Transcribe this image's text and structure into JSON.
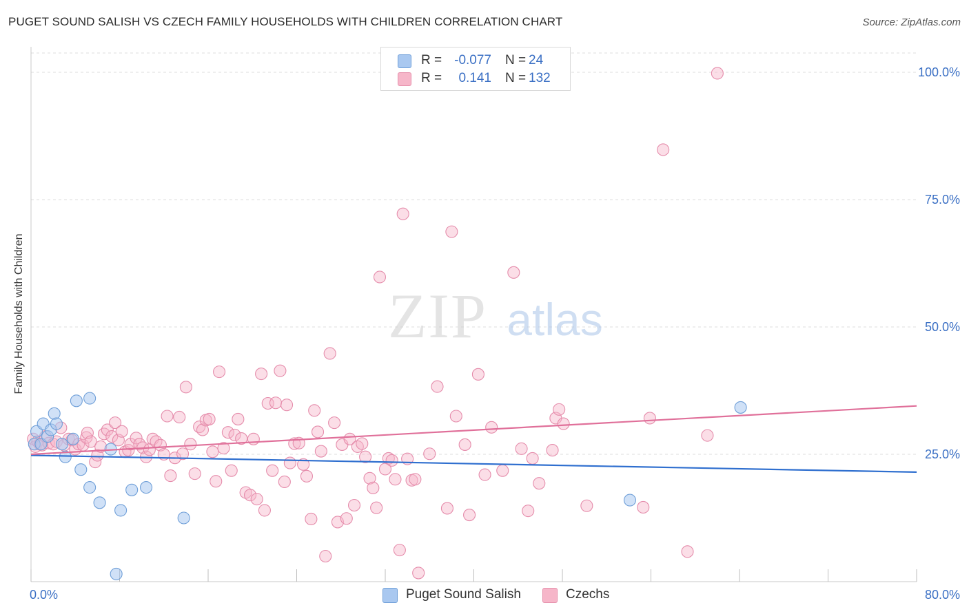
{
  "title": "PUGET SOUND SALISH VS CZECH FAMILY HOUSEHOLDS WITH CHILDREN CORRELATION CHART",
  "source": "Source: ZipAtlas.com",
  "watermark": {
    "zip": "ZIP",
    "atlas": "atlas"
  },
  "legend_top": {
    "rows": [
      {
        "r_label": "R =",
        "r_value": "-0.077",
        "n_label": "N =",
        "n_value": "24",
        "color": "#a9c8f0"
      },
      {
        "r_label": "R =",
        "r_value": "0.141",
        "n_label": "N =",
        "n_value": "132",
        "color": "#f6b6c9"
      }
    ]
  },
  "legend_bottom": {
    "items": [
      {
        "label": "Puget Sound Salish",
        "color": "#a9c8f0"
      },
      {
        "label": "Czechs",
        "color": "#f6b6c9"
      }
    ]
  },
  "chart_data": {
    "type": "scatter",
    "title": "PUGET SOUND SALISH VS CZECH FAMILY HOUSEHOLDS WITH CHILDREN CORRELATION CHART",
    "xlabel": "",
    "ylabel": "Family Households with Children",
    "xlim": [
      0,
      80
    ],
    "ylim": [
      0,
      105
    ],
    "x_tick_labels": [
      "0.0%",
      "80.0%"
    ],
    "y_ticks": [
      25,
      50,
      75,
      100
    ],
    "y_tick_labels": [
      "25.0%",
      "50.0%",
      "75.0%",
      "100.0%"
    ],
    "grid": true,
    "legend_position": "top-center",
    "colors": {
      "salish_fill": "#a9c8f0",
      "salish_line": "#2f6fcf",
      "czech_fill": "#f6b6c9",
      "czech_line": "#e0709a",
      "tick_label": "#3a6fc4"
    },
    "series": [
      {
        "name": "Puget Sound Salish",
        "trend": [
          [
            0,
            24.8
          ],
          [
            80,
            21.5
          ]
        ],
        "points": [
          [
            0.3,
            27.0
          ],
          [
            0.5,
            29.5
          ],
          [
            0.9,
            27.0
          ],
          [
            1.1,
            31.0
          ],
          [
            1.5,
            28.5
          ],
          [
            1.8,
            29.8
          ],
          [
            2.1,
            33.0
          ],
          [
            2.3,
            31.0
          ],
          [
            2.8,
            27.0
          ],
          [
            3.1,
            24.5
          ],
          [
            3.8,
            28.0
          ],
          [
            4.1,
            35.5
          ],
          [
            4.5,
            22.0
          ],
          [
            5.3,
            36.0
          ],
          [
            5.3,
            18.5
          ],
          [
            6.2,
            15.5
          ],
          [
            7.2,
            26.0
          ],
          [
            7.7,
            1.5
          ],
          [
            8.1,
            14.0
          ],
          [
            9.1,
            18.0
          ],
          [
            10.4,
            18.5
          ],
          [
            13.8,
            12.5
          ],
          [
            54.1,
            16.0
          ],
          [
            64.1,
            34.2
          ]
        ]
      },
      {
        "name": "Czechs",
        "trend": [
          [
            0,
            25.0
          ],
          [
            80,
            34.5
          ]
        ],
        "points": [
          [
            0.2,
            28.0
          ],
          [
            0.4,
            26.5
          ],
          [
            0.6,
            27.5
          ],
          [
            0.8,
            27.0
          ],
          [
            1.0,
            26.8
          ],
          [
            1.3,
            28.5
          ],
          [
            1.6,
            27.2
          ],
          [
            2.0,
            27.0
          ],
          [
            2.3,
            27.5
          ],
          [
            2.7,
            30.2
          ],
          [
            3.0,
            26.8
          ],
          [
            3.4,
            28.0
          ],
          [
            3.7,
            27.8
          ],
          [
            4.0,
            26.0
          ],
          [
            4.3,
            27.0
          ],
          [
            4.7,
            26.8
          ],
          [
            5.0,
            28.3
          ],
          [
            5.1,
            29.2
          ],
          [
            5.4,
            27.5
          ],
          [
            5.8,
            23.5
          ],
          [
            6.0,
            24.8
          ],
          [
            6.3,
            26.5
          ],
          [
            6.6,
            29.0
          ],
          [
            6.9,
            29.8
          ],
          [
            7.3,
            28.5
          ],
          [
            7.6,
            31.2
          ],
          [
            7.9,
            27.8
          ],
          [
            8.2,
            29.5
          ],
          [
            8.5,
            25.5
          ],
          [
            8.8,
            25.8
          ],
          [
            9.0,
            27.0
          ],
          [
            9.5,
            28.2
          ],
          [
            9.8,
            27.0
          ],
          [
            10.1,
            26.3
          ],
          [
            10.4,
            24.5
          ],
          [
            10.7,
            25.9
          ],
          [
            11.0,
            28.0
          ],
          [
            11.3,
            27.5
          ],
          [
            11.7,
            26.8
          ],
          [
            12.0,
            25.0
          ],
          [
            12.3,
            32.5
          ],
          [
            12.6,
            20.8
          ],
          [
            13.0,
            24.3
          ],
          [
            13.4,
            32.3
          ],
          [
            13.7,
            25.1
          ],
          [
            14.0,
            38.2
          ],
          [
            14.4,
            27.0
          ],
          [
            14.8,
            21.2
          ],
          [
            15.2,
            30.4
          ],
          [
            15.5,
            29.8
          ],
          [
            15.8,
            31.7
          ],
          [
            16.1,
            31.9
          ],
          [
            16.4,
            25.5
          ],
          [
            16.7,
            19.7
          ],
          [
            17.0,
            41.2
          ],
          [
            17.4,
            26.2
          ],
          [
            17.8,
            29.3
          ],
          [
            18.1,
            21.8
          ],
          [
            18.4,
            28.8
          ],
          [
            18.7,
            31.9
          ],
          [
            19.0,
            28.1
          ],
          [
            19.4,
            17.5
          ],
          [
            19.8,
            17.0
          ],
          [
            20.1,
            28.0
          ],
          [
            20.4,
            16.2
          ],
          [
            20.8,
            40.8
          ],
          [
            21.1,
            14.0
          ],
          [
            21.4,
            35.0
          ],
          [
            21.8,
            21.8
          ],
          [
            22.1,
            35.1
          ],
          [
            22.5,
            41.4
          ],
          [
            22.9,
            19.6
          ],
          [
            23.1,
            34.7
          ],
          [
            23.4,
            23.3
          ],
          [
            23.8,
            27.1
          ],
          [
            24.2,
            27.2
          ],
          [
            24.6,
            23.0
          ],
          [
            24.9,
            20.7
          ],
          [
            25.3,
            12.3
          ],
          [
            25.6,
            33.6
          ],
          [
            25.9,
            29.4
          ],
          [
            26.2,
            25.6
          ],
          [
            26.6,
            5.0
          ],
          [
            27.0,
            44.8
          ],
          [
            27.4,
            31.2
          ],
          [
            27.7,
            11.7
          ],
          [
            28.1,
            26.9
          ],
          [
            28.5,
            12.4
          ],
          [
            28.8,
            28.0
          ],
          [
            29.2,
            15.0
          ],
          [
            29.5,
            26.5
          ],
          [
            29.9,
            27.1
          ],
          [
            30.2,
            24.5
          ],
          [
            30.6,
            20.3
          ],
          [
            30.9,
            18.4
          ],
          [
            31.2,
            14.5
          ],
          [
            31.5,
            59.8
          ],
          [
            32.0,
            22.1
          ],
          [
            32.3,
            24.2
          ],
          [
            32.6,
            23.8
          ],
          [
            32.9,
            20.1
          ],
          [
            33.3,
            6.2
          ],
          [
            33.6,
            72.2
          ],
          [
            34.0,
            24.1
          ],
          [
            34.4,
            19.9
          ],
          [
            34.7,
            20.1
          ],
          [
            35.0,
            1.7
          ],
          [
            36.0,
            25.1
          ],
          [
            36.7,
            38.3
          ],
          [
            37.6,
            14.4
          ],
          [
            38.0,
            68.7
          ],
          [
            38.4,
            32.5
          ],
          [
            39.2,
            26.9
          ],
          [
            39.6,
            13.1
          ],
          [
            40.4,
            40.7
          ],
          [
            41.0,
            21.0
          ],
          [
            41.6,
            30.3
          ],
          [
            42.6,
            21.8
          ],
          [
            43.6,
            60.7
          ],
          [
            44.3,
            26.1
          ],
          [
            44.9,
            13.9
          ],
          [
            45.3,
            24.2
          ],
          [
            45.9,
            19.3
          ],
          [
            47.1,
            25.8
          ],
          [
            47.4,
            32.1
          ],
          [
            47.7,
            33.8
          ],
          [
            48.1,
            31.0
          ],
          [
            50.2,
            14.9
          ],
          [
            55.3,
            14.6
          ],
          [
            55.9,
            32.1
          ],
          [
            57.1,
            84.8
          ],
          [
            59.3,
            5.9
          ],
          [
            61.1,
            28.7
          ],
          [
            62.0,
            99.8
          ]
        ]
      }
    ]
  }
}
